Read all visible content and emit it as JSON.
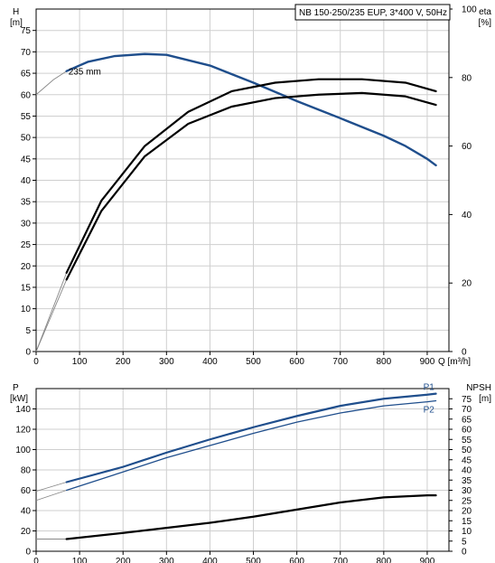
{
  "chart_data": [
    {
      "type": "line",
      "title": "NB 150-250/235 EUP, 3*400 V, 50Hz",
      "xlabel": "Q [m³/h]",
      "ylabel_left_name": "H",
      "ylabel_left_unit": "[m]",
      "ylabel_right_name": "eta",
      "ylabel_right_unit": "[%]",
      "xlim": [
        0,
        950
      ],
      "ylim_left": [
        0,
        80
      ],
      "ylim_right": [
        0,
        100
      ],
      "x_ticks": [
        0,
        100,
        200,
        300,
        400,
        500,
        600,
        700,
        800,
        900
      ],
      "y_left_ticks": [
        0,
        5,
        10,
        15,
        20,
        25,
        30,
        35,
        40,
        45,
        50,
        55,
        60,
        65,
        70,
        75
      ],
      "y_right_ticks": [
        0,
        20,
        40,
        60,
        80,
        100
      ],
      "grid": true,
      "annotations": [
        {
          "text": "235 mm",
          "x": 95,
          "y": 65.5
        }
      ],
      "series": [
        {
          "axis": "left",
          "color": "#1f4e8c",
          "width": 2.4,
          "x": [
            0,
            40,
            70,
            120,
            180,
            250,
            300,
            400,
            500,
            600,
            700,
            800,
            850,
            900,
            920
          ],
          "y": [
            60,
            63.5,
            65.5,
            67.7,
            69,
            69.5,
            69.3,
            66.8,
            62.8,
            58.5,
            54.5,
            50.4,
            48,
            45,
            43.5
          ],
          "extrapolated_until": 70
        },
        {
          "axis": "right",
          "color": "#000000",
          "width": 2.2,
          "x": [
            0,
            70,
            150,
            250,
            350,
            450,
            550,
            650,
            750,
            850,
            920
          ],
          "y": [
            0,
            23,
            44,
            60,
            70,
            76,
            78.5,
            79.5,
            79.5,
            78.5,
            76
          ]
        },
        {
          "axis": "right",
          "color": "#000000",
          "width": 2.2,
          "x": [
            0,
            70,
            150,
            250,
            350,
            450,
            550,
            650,
            750,
            850,
            920
          ],
          "y": [
            0,
            21,
            41,
            57,
            66.5,
            71.5,
            74,
            75,
            75.5,
            74.5,
            72
          ]
        }
      ]
    },
    {
      "type": "line",
      "ylabel_left_name": "P",
      "ylabel_left_unit": "[kW]",
      "ylabel_right_name": "NPSH",
      "ylabel_right_unit": "[m]",
      "xlim": [
        0,
        950
      ],
      "ylim_left": [
        0,
        160
      ],
      "ylim_right": [
        0,
        80
      ],
      "x_ticks": [
        0,
        100,
        200,
        300,
        400,
        500,
        600,
        700,
        800,
        900
      ],
      "y_left_ticks": [
        0,
        20,
        40,
        60,
        80,
        100,
        120,
        140
      ],
      "y_right_ticks": [
        0,
        5,
        10,
        15,
        20,
        25,
        30,
        35,
        40,
        45,
        50,
        55,
        60,
        65,
        70,
        75
      ],
      "grid": true,
      "series": [
        {
          "name": "P1",
          "axis": "left",
          "color": "#1f4e8c",
          "width": 2.2,
          "x": [
            0,
            70,
            200,
            300,
            400,
            500,
            600,
            700,
            800,
            900,
            920
          ],
          "y": [
            59,
            68,
            83,
            97,
            110,
            122,
            133,
            143,
            150,
            154,
            155
          ],
          "extrapolated_until": 70
        },
        {
          "name": "P2",
          "axis": "left",
          "color": "#1f4e8c",
          "width": 1.3,
          "x": [
            0,
            70,
            200,
            300,
            400,
            500,
            600,
            700,
            800,
            900,
            920
          ],
          "y": [
            50,
            60,
            78,
            92,
            104,
            116,
            127,
            136,
            143,
            147,
            148
          ],
          "extrapolated_until": 70
        },
        {
          "axis": "right",
          "color": "#000000",
          "width": 2.2,
          "x": [
            0,
            70,
            200,
            300,
            400,
            500,
            600,
            700,
            800,
            900,
            920
          ],
          "y": [
            6,
            6,
            9,
            11.5,
            14,
            17,
            20.5,
            24,
            26.5,
            27.5,
            27.5
          ],
          "extrapolated_until": 70
        }
      ]
    }
  ]
}
